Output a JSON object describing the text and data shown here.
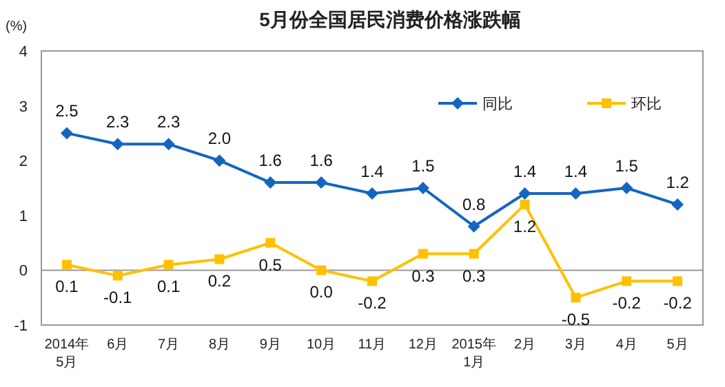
{
  "chart_data": {
    "type": "line",
    "title": "5月份全国居民消费价格涨跌幅",
    "ylabel": "(%)",
    "categories": [
      "2014年\n5月",
      "6月",
      "7月",
      "8月",
      "9月",
      "10月",
      "11月",
      "12月",
      "2015年\n1月",
      "2月",
      "3月",
      "4月",
      "5月"
    ],
    "series": [
      {
        "name": "同比",
        "color": "#1565c0",
        "marker": "diamond",
        "values": [
          2.5,
          2.3,
          2.3,
          2.0,
          1.6,
          1.6,
          1.4,
          1.5,
          0.8,
          1.4,
          1.4,
          1.5,
          1.2
        ],
        "value_labels": [
          "2.5",
          "2.3",
          "2.3",
          "2.0",
          "1.6",
          "1.6",
          "1.4",
          "1.5",
          "0.8",
          "1.4",
          "1.4",
          "1.5",
          "1.2"
        ]
      },
      {
        "name": "环比",
        "color": "#ffc000",
        "marker": "square",
        "values": [
          0.1,
          -0.1,
          0.1,
          0.2,
          0.5,
          0.0,
          -0.2,
          0.3,
          0.3,
          1.2,
          -0.5,
          -0.2,
          -0.2
        ],
        "value_labels": [
          "0.1",
          "-0.1",
          "0.1",
          "0.2",
          "0.5",
          "0.0",
          "-0.2",
          "0.3",
          "0.3",
          "1.2",
          "-0.5",
          "-0.2",
          "-0.2"
        ]
      }
    ],
    "ylim": [
      -1,
      4
    ],
    "yticks": [
      -1,
      0,
      1,
      2,
      3,
      4
    ],
    "legend": "top right",
    "line_style": "solid"
  }
}
